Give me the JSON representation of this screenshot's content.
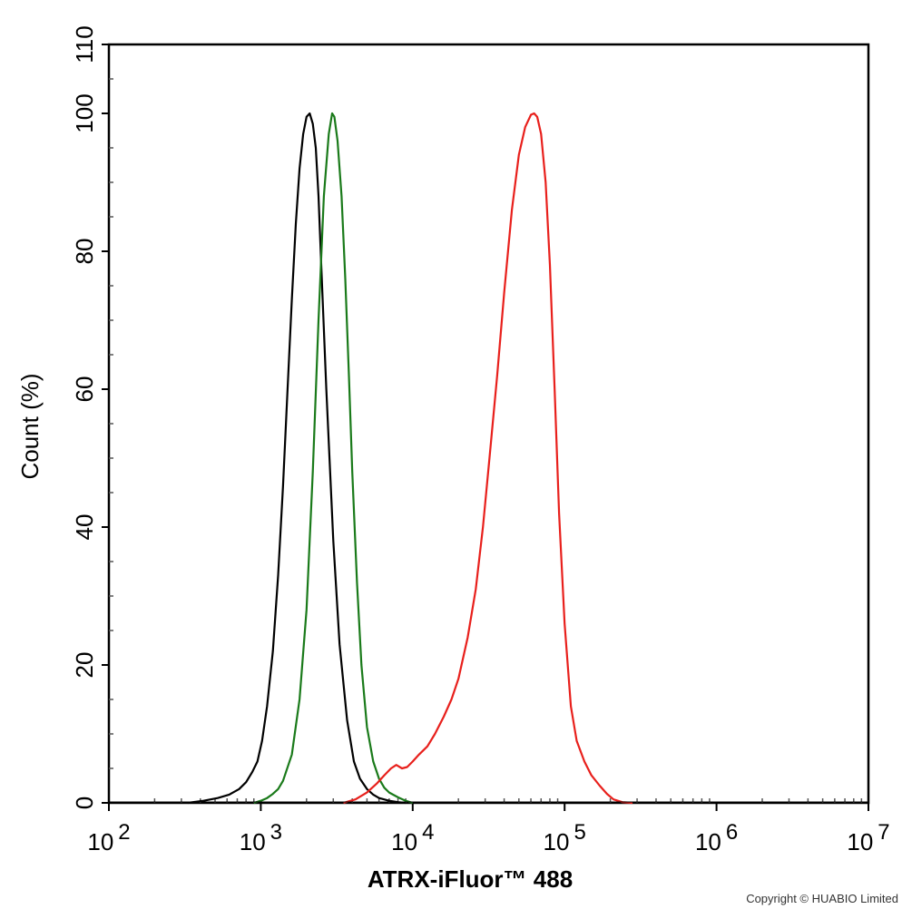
{
  "chart_data": {
    "type": "line",
    "title": "",
    "xlabel": "ATRX-iFluor™ 488",
    "ylabel": "Count  (%)",
    "x_scale": "log",
    "xlim": [
      100,
      10000000
    ],
    "ylim": [
      0,
      110
    ],
    "x_ticks": [
      {
        "base": "10",
        "exp": "2",
        "value": 100
      },
      {
        "base": "10",
        "exp": "3",
        "value": 1000
      },
      {
        "base": "10",
        "exp": "4",
        "value": 10000
      },
      {
        "base": "10",
        "exp": "5",
        "value": 100000
      },
      {
        "base": "10",
        "exp": "6",
        "value": 1000000
      },
      {
        "base": "10",
        "exp": "7",
        "value": 10000000
      }
    ],
    "y_ticks": [
      "0",
      "20",
      "40",
      "60",
      "80",
      "100",
      "110"
    ],
    "y_tick_values": [
      0,
      20,
      40,
      60,
      80,
      100,
      110
    ],
    "grid": false,
    "series": [
      {
        "color": "#000000",
        "x": [
          330,
          420,
          520,
          620,
          720,
          800,
          880,
          950,
          1020,
          1100,
          1200,
          1300,
          1400,
          1500,
          1600,
          1700,
          1800,
          1900,
          2000,
          2100,
          2200,
          2300,
          2400,
          2500,
          2700,
          3000,
          3300,
          3700,
          4100,
          4500,
          5000,
          5500,
          6000,
          7000,
          8000,
          9000
        ],
        "y": [
          0,
          0.3,
          0.7,
          1.2,
          2.0,
          3.0,
          4.5,
          6.0,
          9.0,
          14,
          22,
          33,
          46,
          60,
          73,
          84,
          92,
          97,
          99.5,
          100,
          98.5,
          95,
          88,
          78,
          60,
          38,
          23,
          12,
          6,
          3.5,
          2.0,
          1.2,
          0.7,
          0.3,
          0.1,
          0
        ]
      },
      {
        "color": "#1a7a1a",
        "x": [
          900,
          1000,
          1100,
          1200,
          1300,
          1400,
          1600,
          1800,
          2000,
          2200,
          2400,
          2600,
          2800,
          2950,
          3050,
          3200,
          3400,
          3600,
          3800,
          4000,
          4300,
          4600,
          5000,
          5500,
          6000,
          6500,
          7000,
          8000,
          9000,
          10000
        ],
        "y": [
          0,
          0.3,
          0.7,
          1.3,
          2.0,
          3.2,
          7,
          15,
          28,
          48,
          70,
          88,
          97,
          100,
          99.5,
          96,
          88,
          76,
          62,
          48,
          32,
          20,
          11,
          6,
          3.5,
          2.2,
          1.5,
          0.8,
          0.3,
          0
        ]
      },
      {
        "color": "#e8201c",
        "x": [
          3500,
          4200,
          5000,
          5800,
          6500,
          7200,
          7800,
          8500,
          9200,
          10000,
          11000,
          12500,
          14000,
          16000,
          18000,
          20000,
          23000,
          26000,
          29000,
          32000,
          36000,
          40000,
          45000,
          50000,
          55000,
          60000,
          63000,
          66000,
          70000,
          75000,
          80000,
          86000,
          92000,
          100000,
          110000,
          120000,
          135000,
          150000,
          170000,
          190000,
          210000,
          240000,
          280000
        ],
        "y": [
          0,
          0.5,
          1.5,
          2.8,
          4.0,
          5.0,
          5.5,
          5.0,
          5.2,
          6.0,
          7.0,
          8.2,
          10,
          12.5,
          15,
          18,
          24,
          31,
          40,
          50,
          62,
          74,
          86,
          94,
          98,
          99.8,
          100,
          99.5,
          97,
          90,
          78,
          60,
          42,
          26,
          14,
          9,
          6,
          4,
          2.5,
          1.3,
          0.5,
          0.1,
          0
        ]
      }
    ],
    "annotation": "Copyright © HUABIO Limited"
  }
}
